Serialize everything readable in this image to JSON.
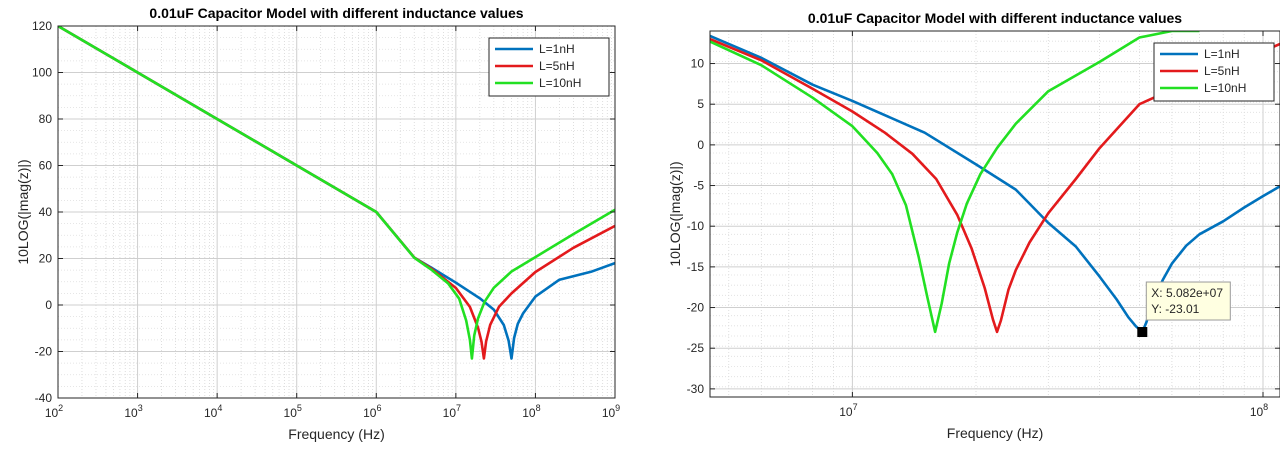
{
  "chart_data": [
    {
      "type": "line",
      "title": "0.01uF Capacitor Model with different inductance values",
      "xlabel": "Frequency (Hz)",
      "ylabel": "10LOG(|mag(z)|)",
      "xscale": "log",
      "xlim": [
        100,
        1000000000
      ],
      "ylim": [
        -40,
        120
      ],
      "grid": true,
      "legend_position": "top-right",
      "x_ticks": [
        {
          "value": 100,
          "base": "10",
          "exp": "2"
        },
        {
          "value": 1000,
          "base": "10",
          "exp": "3"
        },
        {
          "value": 10000,
          "base": "10",
          "exp": "4"
        },
        {
          "value": 100000,
          "base": "10",
          "exp": "5"
        },
        {
          "value": 1000000,
          "base": "10",
          "exp": "6"
        },
        {
          "value": 10000000,
          "base": "10",
          "exp": "7"
        },
        {
          "value": 100000000,
          "base": "10",
          "exp": "8"
        },
        {
          "value": 1000000000,
          "base": "10",
          "exp": "9"
        }
      ],
      "y_ticks": [
        -40,
        -20,
        0,
        20,
        40,
        60,
        80,
        100,
        120
      ],
      "series": [
        {
          "name": "L=1nH",
          "color": "#0072BD",
          "x": [
            100,
            1000,
            10000,
            100000,
            1000000,
            3000000,
            5000000,
            10000000,
            20000000,
            30000000,
            40000000,
            46000000,
            50000000,
            54000000,
            60000000,
            70000000,
            100000000,
            200000000,
            500000000,
            1000000000
          ],
          "y": [
            120,
            100,
            80,
            60,
            40,
            20.4,
            15.9,
            9.6,
            2.9,
            -2.0,
            -8.6,
            -15.3,
            -23,
            -14.2,
            -8.1,
            -3.6,
            3.6,
            10.9,
            14.3,
            18
          ]
        },
        {
          "name": "L=5nH",
          "color": "#E31A1C",
          "x": [
            100,
            1000,
            10000,
            100000,
            1000000,
            3000000,
            5000000,
            10000000,
            15000000,
            19000000,
            21000000,
            22500000,
            24000000,
            27000000,
            35000000,
            50000000,
            100000000,
            300000000,
            1000000000
          ],
          "y": [
            120,
            100,
            80,
            60,
            40,
            20.4,
            15.5,
            7.3,
            -0.8,
            -9.7,
            -15.8,
            -23,
            -15.7,
            -8.5,
            -0.7,
            5.0,
            14.2,
            24.6,
            34
          ]
        },
        {
          "name": "L=10nH",
          "color": "#22E022",
          "x": [
            100,
            1000,
            10000,
            100000,
            1000000,
            3000000,
            5000000,
            8000000,
            11000000,
            13500000,
            15000000,
            15900000,
            17000000,
            19000000,
            23000000,
            30000000,
            50000000,
            100000000,
            300000000,
            1000000000
          ],
          "y": [
            120,
            100,
            80,
            60,
            40,
            20.3,
            15.0,
            9.3,
            2.7,
            -6.7,
            -15.0,
            -23,
            -13.2,
            -5.8,
            1.4,
            7.4,
            14.4,
            20.6,
            30.5,
            41
          ]
        }
      ]
    },
    {
      "type": "line",
      "title": "0.01uF Capacitor Model with different inductance values",
      "xlabel": "Frequency (Hz)",
      "ylabel": "10LOG(|mag(z)|)",
      "xscale": "log",
      "xlim": [
        4500000,
        110000000
      ],
      "ylim": [
        -31,
        14
      ],
      "grid": true,
      "legend_position": "top-right",
      "x_ticks": [
        {
          "value": 10000000,
          "base": "10",
          "exp": "7"
        },
        {
          "value": 100000000,
          "base": "10",
          "exp": "8"
        }
      ],
      "y_ticks": [
        -30,
        -25,
        -20,
        -15,
        -10,
        -5,
        0,
        5,
        10
      ],
      "datatip": {
        "x_text": "X: 5.082e+07",
        "y_text": "Y: -23.01",
        "x": 50820000,
        "y": -23.01
      },
      "series": [
        {
          "name": "L=1nH",
          "color": "#0072BD",
          "x": [
            4500000,
            6000000,
            8000000,
            10000000,
            15000000,
            20000000,
            25000000,
            30000000,
            35000000,
            40000000,
            44000000,
            47000000,
            49000000,
            50820000,
            52000000,
            54000000,
            57000000,
            60000000,
            65000000,
            70000000,
            80000000,
            90000000,
            100000000,
            110000000
          ],
          "y": [
            13.4,
            10.7,
            7.4,
            5.4,
            1.5,
            -2.4,
            -5.5,
            -9.6,
            -12.5,
            -16.2,
            -19.0,
            -21.2,
            -22.3,
            -23.01,
            -21.8,
            -19.2,
            -16.6,
            -14.6,
            -12.4,
            -11.0,
            -9.4,
            -7.7,
            -6.3,
            -5.1
          ]
        },
        {
          "name": "L=5nH",
          "color": "#E31A1C",
          "x": [
            4500000,
            6000000,
            8000000,
            10000000,
            12000000,
            14000000,
            16000000,
            18000000,
            19500000,
            21000000,
            22000000,
            22500000,
            23000000,
            24000000,
            25000000,
            27000000,
            30000000,
            35000000,
            40000000,
            50000000,
            60000000,
            80000000,
            110000000
          ],
          "y": [
            13.0,
            10.4,
            6.9,
            4.1,
            1.5,
            -1.1,
            -4.2,
            -8.6,
            -12.7,
            -17.6,
            -21.5,
            -23.0,
            -21.6,
            -17.8,
            -15.4,
            -12.0,
            -8.4,
            -4.2,
            -0.4,
            5.0,
            6.8,
            9.4,
            12.4
          ]
        },
        {
          "name": "L=10nH",
          "color": "#22E022",
          "x": [
            4500000,
            6000000,
            8000000,
            10000000,
            11500000,
            12500000,
            13500000,
            14500000,
            15200000,
            15900000,
            16500000,
            17200000,
            18000000,
            19000000,
            20500000,
            22500000,
            25000000,
            30000000,
            40000000,
            50000000,
            60000000,
            70000000
          ],
          "y": [
            12.7,
            9.8,
            5.8,
            2.3,
            -1.0,
            -3.6,
            -7.4,
            -13.8,
            -18.6,
            -23.0,
            -19.5,
            -14.6,
            -10.8,
            -7.2,
            -3.6,
            -0.4,
            2.6,
            6.6,
            10.2,
            13.2,
            14.0,
            14.0
          ]
        }
      ]
    }
  ]
}
